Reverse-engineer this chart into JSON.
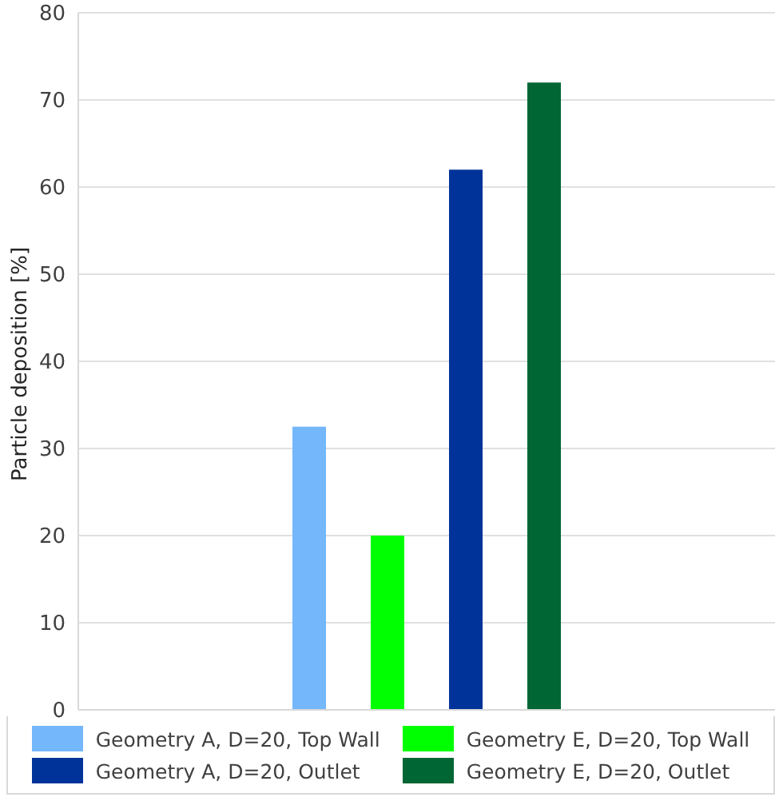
{
  "chart_data": {
    "type": "bar",
    "ylabel": "Particle deposition [%]",
    "categories": [
      null
    ],
    "series": [
      {
        "name": "Geometry A, D=20, Top Wall",
        "color": "#74b7fb",
        "values": [
          32.5
        ]
      },
      {
        "name": "Geometry E, D=20, Top Wall",
        "color": "#00ff00",
        "values": [
          20
        ]
      },
      {
        "name": "Geometry A, D=20, Outlet",
        "color": "#003399",
        "values": [
          62
        ]
      },
      {
        "name": "Geometry E, D=20, Outlet",
        "color": "#006633",
        "values": [
          72
        ]
      }
    ],
    "ylim": [
      0,
      80
    ],
    "yticks": [
      0,
      10,
      20,
      30,
      40,
      50,
      60,
      70,
      80
    ],
    "grid": "y",
    "legend": "bottom"
  }
}
